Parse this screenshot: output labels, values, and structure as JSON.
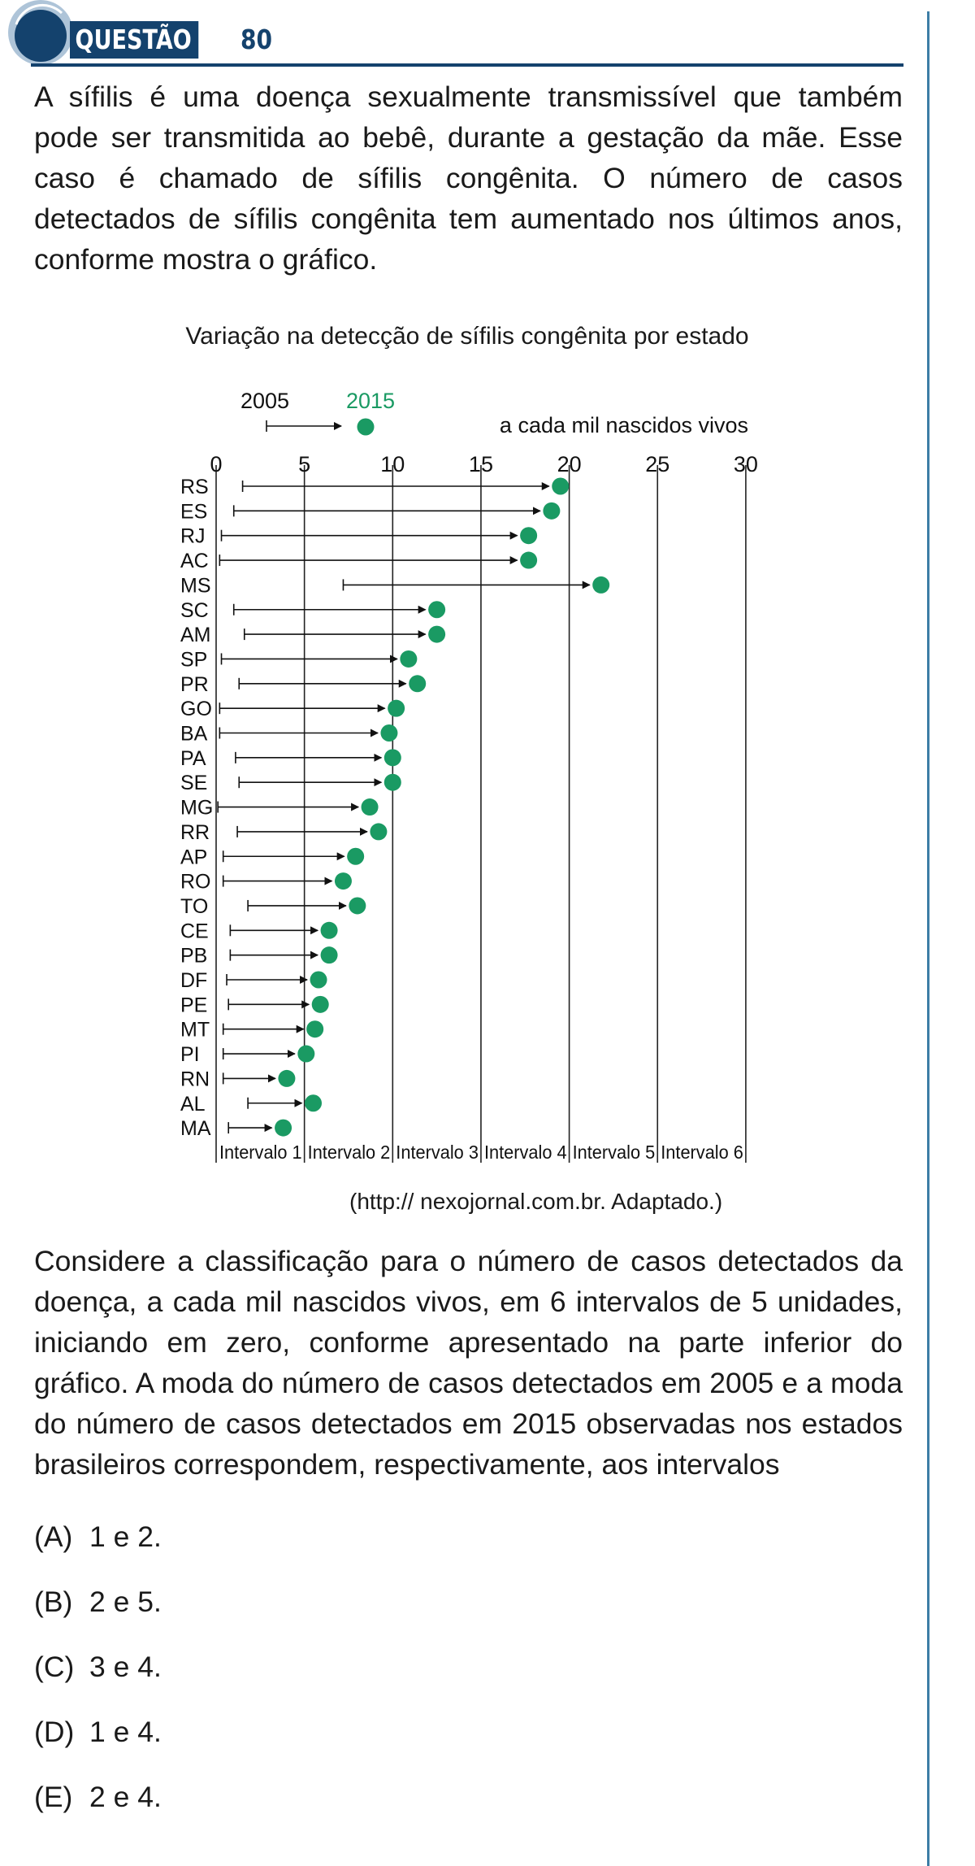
{
  "header": {
    "label": "QUESTÃO",
    "number": "80"
  },
  "intro_text": "A sífilis é uma doença sexualmente transmissível que também pode ser transmitida ao bebê, durante a gestação da mãe. Esse caso é chamado de sífilis congênita. O número de casos detectados de sífilis congênita tem aumentado nos últimos anos, conforme mostra o gráfico.",
  "chart_data": {
    "type": "dot-arrow",
    "title": "Variação na detecção de sífilis congênita por estado",
    "legend": {
      "start": "2005",
      "end": "2015",
      "unit": "a cada mil nascidos vivos",
      "start_color": "#111111",
      "end_color": "#1a9a63"
    },
    "xlim": [
      0,
      30
    ],
    "xticks": [
      "0",
      "5",
      "10",
      "15",
      "20",
      "25",
      "30"
    ],
    "intervals": [
      "Intervalo 1",
      "Intervalo 2",
      "Intervalo 3",
      "Intervalo 4",
      "Intervalo 5",
      "Intervalo 6"
    ],
    "categories": [
      "RS",
      "ES",
      "RJ",
      "AC",
      "MS",
      "SC",
      "AM",
      "SP",
      "PR",
      "GO",
      "BA",
      "PA",
      "SE",
      "MG",
      "RR",
      "AP",
      "RO",
      "TO",
      "CE",
      "PB",
      "DF",
      "PE",
      "MT",
      "PI",
      "RN",
      "AL",
      "MA"
    ],
    "series": [
      {
        "name": "2005",
        "values": [
          1.5,
          1.0,
          0.3,
          0.2,
          7.2,
          1.0,
          1.6,
          0.3,
          1.3,
          0.2,
          0.2,
          1.1,
          1.3,
          0.1,
          1.2,
          0.4,
          0.4,
          1.8,
          0.8,
          0.8,
          0.6,
          0.7,
          0.4,
          0.4,
          0.4,
          1.8,
          0.7
        ]
      },
      {
        "name": "2015",
        "values": [
          19.5,
          19.0,
          17.7,
          17.7,
          21.8,
          12.5,
          12.5,
          10.9,
          11.4,
          10.2,
          9.8,
          10.0,
          10.0,
          8.7,
          9.2,
          7.9,
          7.2,
          8.0,
          6.4,
          6.4,
          5.8,
          5.9,
          5.6,
          5.1,
          4.0,
          5.5,
          3.8
        ]
      }
    ]
  },
  "source": "(http:// nexojornal.com.br. Adaptado.)",
  "question_text": "Considere a classificação para o número de casos detectados da doença, a cada mil nascidos vivos, em 6 intervalos de 5 unidades, iniciando em zero, conforme apresentado na parte inferior do gráfico. A moda do número de casos detectados em 2005 e a moda do número de casos detectados em 2015 observadas nos estados brasileiros correspondem, respectivamente, aos intervalos",
  "options": [
    {
      "letter": "(A)",
      "text": "1 e 2."
    },
    {
      "letter": "(B)",
      "text": "2 e 5."
    },
    {
      "letter": "(C)",
      "text": "3 e 4."
    },
    {
      "letter": "(D)",
      "text": "1 e 4."
    },
    {
      "letter": "(E)",
      "text": "2 e 4."
    }
  ]
}
